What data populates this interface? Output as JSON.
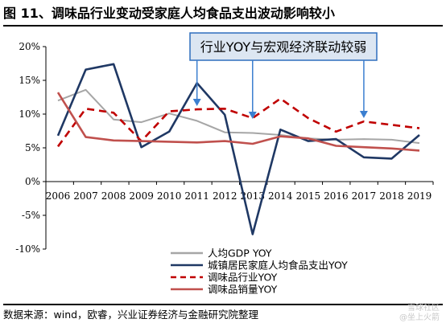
{
  "title": "图 11、调味品行业变动受家庭人均食品支出波动影响较小",
  "source": "数据来源：wind，欧睿，兴业证券经济与金融研究院整理",
  "watermark": {
    "line1": "雪球社区",
    "line2": "@坐上火箭"
  },
  "annotation": "行业YOY与宏观经济联动较弱",
  "colors": {
    "gdp": "#a6a6a6",
    "food": "#1f3864",
    "industry": "#c00000",
    "volume": "#c0504d",
    "annotation_border": "#2f6fbd",
    "annotation_fill": "#dce6f2",
    "arrow": "#3b7fd0"
  },
  "chart_data": {
    "type": "line",
    "x": [
      "2006",
      "2007",
      "2008",
      "2009",
      "2010",
      "2011",
      "2012",
      "2013",
      "2014",
      "2015",
      "2016",
      "2017",
      "2018",
      "2019"
    ],
    "ylim": [
      -10,
      20
    ],
    "yticks": [
      "20%",
      "15%",
      "10%",
      "5%",
      "0%",
      "-5%",
      "-10%"
    ],
    "ytick_values": [
      20,
      15,
      10,
      5,
      0,
      -5,
      -10
    ],
    "grid": false,
    "legend": "bottom-center",
    "annotation_arrows_at": [
      "2011",
      "2013",
      "2017"
    ],
    "series": [
      {
        "name": "人均GDP YOY",
        "color_key": "gdp",
        "style": "solid",
        "values": [
          12.0,
          13.6,
          9.2,
          8.8,
          10.1,
          9.0,
          7.3,
          7.2,
          6.9,
          6.4,
          6.2,
          6.3,
          6.2,
          5.7
        ]
      },
      {
        "name": "城镇居民家庭人均食品支出YOY",
        "color_key": "food",
        "style": "solid",
        "values": [
          6.8,
          16.6,
          17.4,
          5.1,
          7.4,
          14.6,
          9.9,
          -7.8,
          7.7,
          6.0,
          6.3,
          3.6,
          3.4,
          6.9
        ]
      },
      {
        "name": "调味品行业YOY",
        "color_key": "industry",
        "style": "dashed",
        "values": [
          5.2,
          10.8,
          10.2,
          6.0,
          10.4,
          10.7,
          10.8,
          9.4,
          12.3,
          9.4,
          7.4,
          8.9,
          8.4,
          7.9
        ]
      },
      {
        "name": "调味品销量YOY",
        "color_key": "volume",
        "style": "solid",
        "values": [
          13.2,
          6.6,
          6.1,
          6.0,
          5.9,
          5.8,
          6.0,
          5.6,
          6.7,
          6.4,
          5.3,
          5.1,
          4.9,
          4.6
        ]
      }
    ]
  }
}
